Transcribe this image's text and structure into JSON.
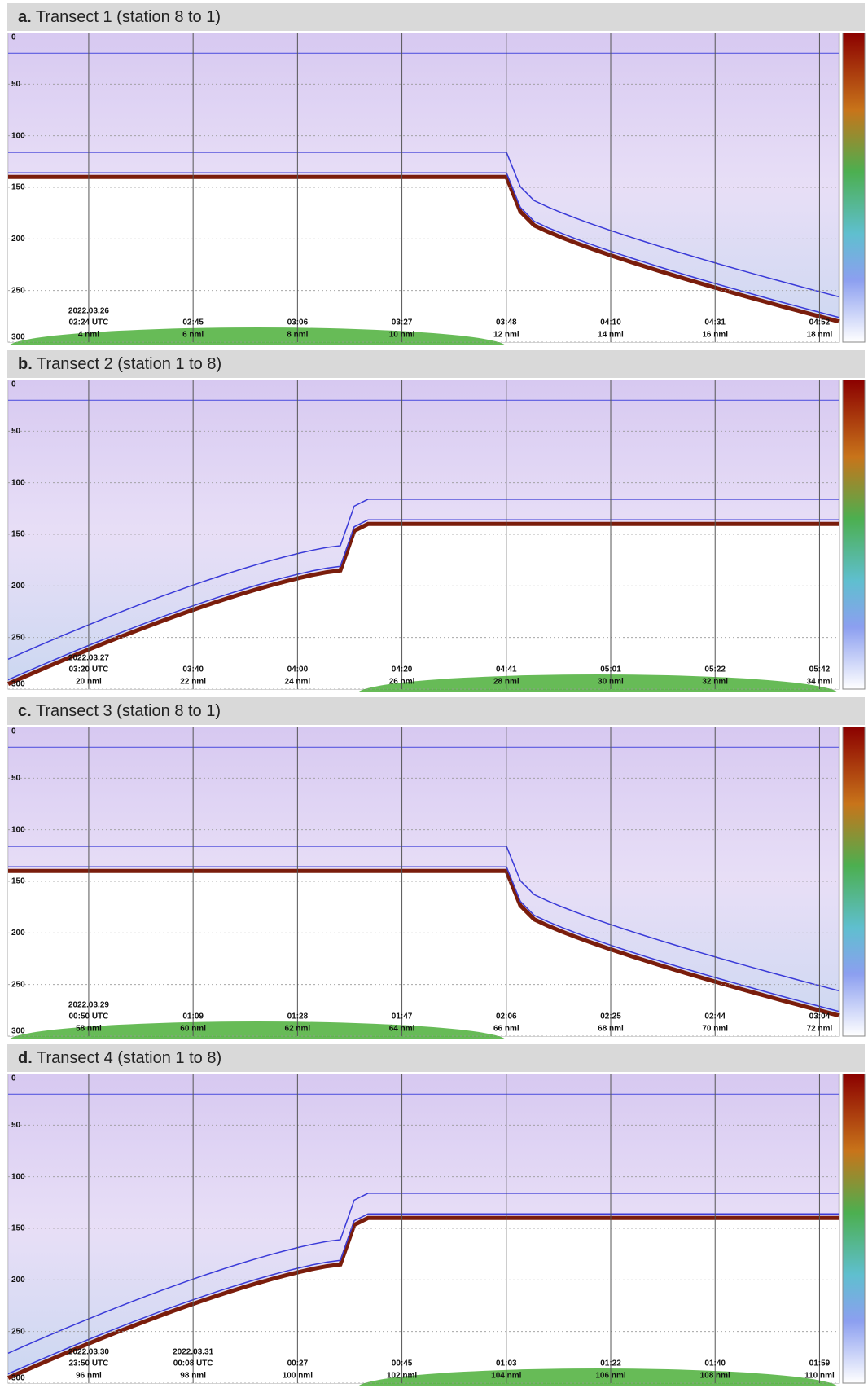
{
  "panels": [
    {
      "label": "a.",
      "title": "Transect 1 (station 8 to 1)",
      "depth_ticks": [
        "0",
        "50",
        "100",
        "150",
        "200",
        "250",
        "300"
      ],
      "columns": [
        {
          "date": "2022.03.26",
          "time": "02:24 UTC",
          "distance": "4 nmi"
        },
        {
          "time": "02:45",
          "distance": "6 nmi"
        },
        {
          "time": "03:06",
          "distance": "8 nmi"
        },
        {
          "time": "03:27",
          "distance": "10 nmi"
        },
        {
          "time": "03:48",
          "distance": "12 nmi"
        },
        {
          "time": "04:10",
          "distance": "14 nmi"
        },
        {
          "time": "04:31",
          "distance": "16 nmi"
        },
        {
          "time": "04:52",
          "distance": "18 nmi"
        }
      ]
    },
    {
      "label": "b.",
      "title": "Transect 2 (station 1 to 8)",
      "depth_ticks": [
        "0",
        "50",
        "100",
        "150",
        "200",
        "250",
        "300"
      ],
      "columns": [
        {
          "date": "2022.03.27",
          "time": "03:20 UTC",
          "distance": "20 nmi"
        },
        {
          "time": "03:40",
          "distance": "22 nmi"
        },
        {
          "time": "04:00",
          "distance": "24 nmi"
        },
        {
          "time": "04:20",
          "distance": "26 nmi"
        },
        {
          "time": "04:41",
          "distance": "28 nmi"
        },
        {
          "time": "05:01",
          "distance": "30 nmi"
        },
        {
          "time": "05:22",
          "distance": "32 nmi"
        },
        {
          "time": "05:42",
          "distance": "34 nmi"
        }
      ]
    },
    {
      "label": "c.",
      "title": "Transect 3 (station 8 to 1)",
      "depth_ticks": [
        "0",
        "50",
        "100",
        "150",
        "200",
        "250",
        "300"
      ],
      "columns": [
        {
          "date": "2022.03.29",
          "time": "00:50 UTC",
          "distance": "58 nmi"
        },
        {
          "time": "01:09",
          "distance": "60 nmi"
        },
        {
          "time": "01:28",
          "distance": "62 nmi"
        },
        {
          "time": "01:47",
          "distance": "64 nmi"
        },
        {
          "time": "02:06",
          "distance": "66 nmi"
        },
        {
          "time": "02:25",
          "distance": "68 nmi"
        },
        {
          "time": "02:44",
          "distance": "70 nmi"
        },
        {
          "time": "03:04",
          "distance": "72 nmi"
        }
      ]
    },
    {
      "label": "d.",
      "title": "Transect 4 (station 1 to 8)",
      "depth_ticks": [
        "0",
        "50",
        "100",
        "150",
        "200",
        "250",
        "300"
      ],
      "columns": [
        {
          "date": "2022.03.30",
          "time": "23:50 UTC",
          "distance": "96 nmi"
        },
        {
          "date": "2022.03.31",
          "time": "00:08 UTC",
          "distance": "98 nmi"
        },
        {
          "time": "00:27",
          "distance": "100 nmi"
        },
        {
          "time": "00:45",
          "distance": "102 nmi"
        },
        {
          "time": "01:03",
          "distance": "104 nmi"
        },
        {
          "time": "01:22",
          "distance": "106 nmi"
        },
        {
          "time": "01:40",
          "distance": "108 nmi"
        },
        {
          "time": "01:59",
          "distance": "110 nmi"
        }
      ]
    }
  ]
}
